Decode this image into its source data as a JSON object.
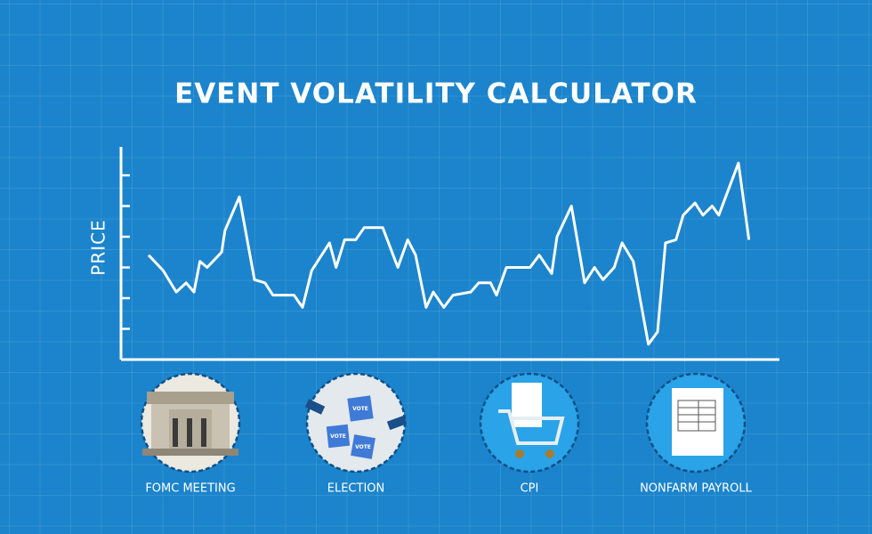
{
  "chart_data": {
    "type": "line",
    "title": "EVENT VOLATILITY CALCULATOR",
    "y_label": "PRICE",
    "xlim": [
      0,
      100
    ],
    "ylim": [
      0,
      7
    ],
    "yticks": [
      1,
      2,
      3,
      4,
      5,
      6
    ],
    "color": "#ffffff",
    "series": [
      {
        "x": [
          4.2,
          6.4,
          8.4,
          9.9,
          11.1,
          12.0,
          13.1,
          15.3,
          15.8,
          18.0,
          20.3,
          21.9,
          23.1,
          26.3,
          27.6,
          29.0,
          31.7,
          32.7,
          34.0,
          35.7,
          37.0,
          39.8,
          42.1,
          43.6,
          44.8,
          46.4,
          47.5,
          49.1,
          50.5,
          53.2,
          54.4,
          56.2,
          57.1,
          58.6,
          62.2,
          63.6,
          65.5,
          66.3,
          68.5,
          70.5,
          72.0,
          73.3,
          75.0,
          76.2,
          77.9,
          80.2,
          81.6,
          82.8,
          84.4,
          85.5,
          87.3,
          88.5,
          89.9,
          90.9,
          93.9,
          95.5
        ],
        "values": [
          3.4,
          2.9,
          2.2,
          2.5,
          2.2,
          3.2,
          3.0,
          3.5,
          4.2,
          5.3,
          2.6,
          2.5,
          2.1,
          2.1,
          1.7,
          2.9,
          3.8,
          3.0,
          3.9,
          3.9,
          4.3,
          4.3,
          3.0,
          3.9,
          3.4,
          1.7,
          2.2,
          1.7,
          2.1,
          2.2,
          2.5,
          2.5,
          2.1,
          3.0,
          3.0,
          3.4,
          2.8,
          4.0,
          5.0,
          2.5,
          3.0,
          2.6,
          3.0,
          3.8,
          3.2,
          0.5,
          0.9,
          3.8,
          3.9,
          4.7,
          5.1,
          4.7,
          5.0,
          4.7,
          6.4,
          3.9
        ]
      }
    ]
  },
  "events": [
    "FOMC MEETING",
    "ELECTION",
    "CPI",
    "NONFARM PAYROLL"
  ],
  "vote_label": "VOTE"
}
